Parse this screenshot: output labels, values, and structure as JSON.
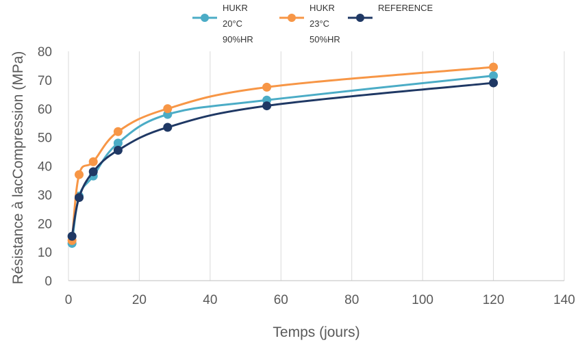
{
  "chart_data": {
    "type": "line",
    "xlabel": "Temps (jours)",
    "ylabel": "Résistance à lacCompression (MPa)",
    "xlim": [
      0,
      140
    ],
    "ylim": [
      0,
      80
    ],
    "x_ticks": [
      "0",
      "20",
      "40",
      "60",
      "80",
      "100",
      "120",
      "140"
    ],
    "y_ticks": [
      "0",
      "10",
      "20",
      "30",
      "40",
      "50",
      "60",
      "70",
      "80"
    ],
    "grid": "vertical",
    "legend_position": "top",
    "x": [
      1,
      3,
      7,
      14,
      28,
      56,
      120
    ],
    "series": [
      {
        "name": "HUKR 20°C 90%HR",
        "legend_lines": [
          "HUKR",
          "20°C",
          "90%HR"
        ],
        "color": "#4bacc6",
        "values": [
          13,
          29.5,
          36.5,
          48,
          58,
          63,
          71.5
        ]
      },
      {
        "name": "HUKR 23°C 50%HR",
        "legend_lines": [
          "HUKR",
          "23°C",
          "50%HR"
        ],
        "color": "#f79646",
        "values": [
          14,
          37,
          41.5,
          52,
          60,
          67.5,
          74.5
        ]
      },
      {
        "name": "REFERENCE",
        "legend_lines": [
          "REFERENCE"
        ],
        "color": "#1f3864",
        "values": [
          15.5,
          29,
          38,
          45.5,
          53.5,
          61,
          69
        ]
      }
    ]
  }
}
